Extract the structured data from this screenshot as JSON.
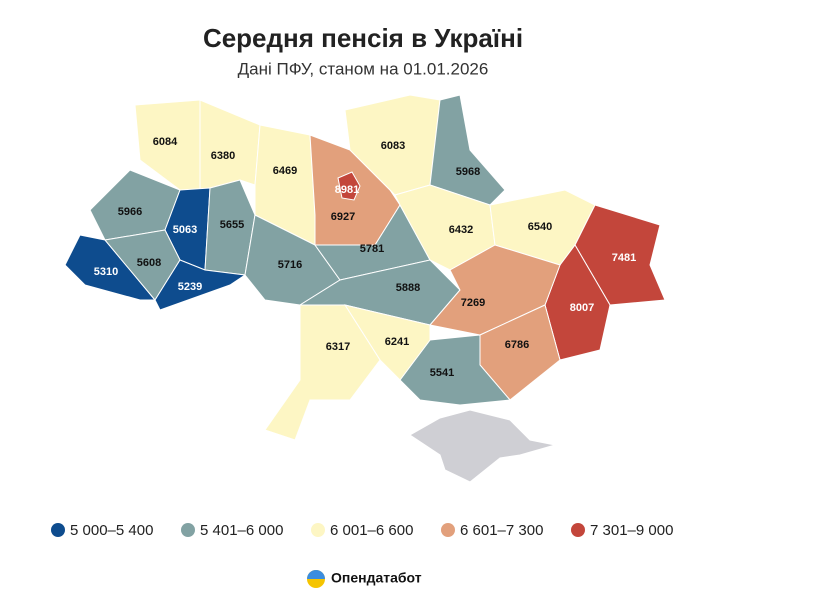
{
  "title": "Середня пенсія в Україні",
  "subtitle": "Дані ПФУ, станом на 01.01.2026",
  "source": "Опендатабот",
  "legend": [
    {
      "label": "5 000–5 400",
      "min": 5000,
      "max": 5400,
      "color": "#0e4c8e"
    },
    {
      "label": "5 401–6 000",
      "min": 5401,
      "max": 6000,
      "color": "#82a2a3"
    },
    {
      "label": "6 001–6 600",
      "min": 6001,
      "max": 6600,
      "color": "#fdf6c4"
    },
    {
      "label": "6 601–7 300",
      "min": 6601,
      "max": 7300,
      "color": "#e2a07c"
    },
    {
      "label": "7 301–9 000",
      "min": 7301,
      "max": 9000,
      "color": "#c3463b"
    }
  ],
  "regions": [
    {
      "value": 6084
    },
    {
      "value": 6380
    },
    {
      "value": 6469
    },
    {
      "value": 6927
    },
    {
      "value": 6083
    },
    {
      "value": 5968
    },
    {
      "value": 5966
    },
    {
      "value": 5063
    },
    {
      "value": 5655
    },
    {
      "value": 5310
    },
    {
      "value": 5608
    },
    {
      "value": 5239
    },
    {
      "value": 5716
    },
    {
      "value": 5781
    },
    {
      "value": 5888
    },
    {
      "value": 6432
    },
    {
      "value": 6540
    },
    {
      "value": 7481
    },
    {
      "value": 8007
    },
    {
      "value": 7269
    },
    {
      "value": 6786
    },
    {
      "value": 5541
    },
    {
      "value": 6241
    },
    {
      "value": 6317
    },
    {
      "value": 8981
    }
  ]
}
